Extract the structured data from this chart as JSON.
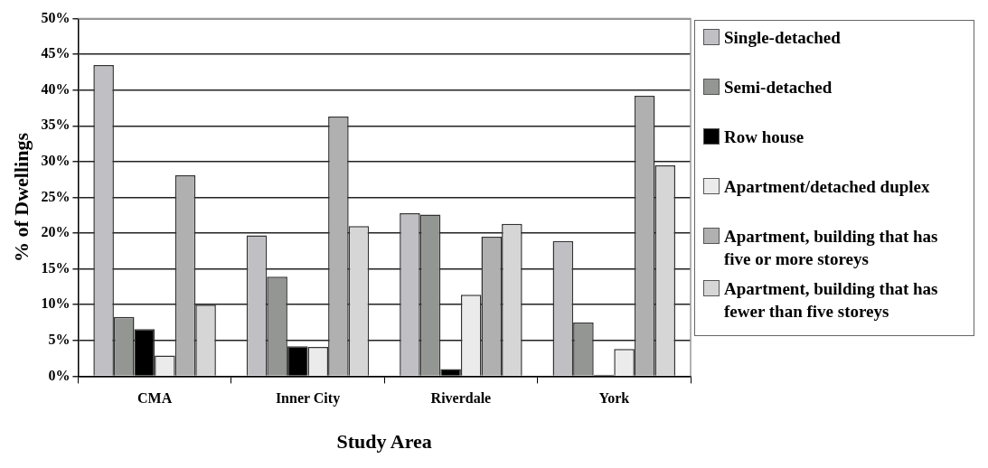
{
  "chart_data": {
    "type": "bar",
    "xlabel": "Study Area",
    "ylabel": "% of Dwellings",
    "categories": [
      "CMA",
      "Inner City",
      "Riverdale",
      "York"
    ],
    "series": [
      {
        "name": "Single-detached",
        "color": "#c0c0c4",
        "values": [
          43.5,
          19.7,
          22.8,
          18.9
        ]
      },
      {
        "name": "Semi-detached",
        "color": "#949694",
        "values": [
          8.3,
          13.9,
          22.6,
          7.5
        ]
      },
      {
        "name": "Row house",
        "color": "#000000",
        "values": [
          6.6,
          4.2,
          1.0,
          0.2
        ]
      },
      {
        "name": "Apartment/detached duplex",
        "color": "#ebebeb",
        "values": [
          2.9,
          4.1,
          11.4,
          3.8
        ]
      },
      {
        "name": "Apartment, building that has five or more storeys",
        "color": "#b0b0b0",
        "values": [
          28.1,
          36.3,
          19.5,
          39.2
        ]
      },
      {
        "name": "Apartment, building that has fewer than five storeys",
        "color": "#d6d6d6",
        "values": [
          10.0,
          21.0,
          21.3,
          29.5
        ]
      }
    ],
    "ylim": [
      0,
      50
    ],
    "yticks": [
      {
        "value": 0,
        "label": "0%"
      },
      {
        "value": 5,
        "label": "5%"
      },
      {
        "value": 10,
        "label": "10%"
      },
      {
        "value": 15,
        "label": "15%"
      },
      {
        "value": 20,
        "label": "20%"
      },
      {
        "value": 25,
        "label": "25%"
      },
      {
        "value": 30,
        "label": "30%"
      },
      {
        "value": 35,
        "label": "35%"
      },
      {
        "value": 40,
        "label": "40%"
      },
      {
        "value": 45,
        "label": "45%"
      },
      {
        "value": 50,
        "label": "50%"
      }
    ],
    "grid": "y",
    "legend": "right"
  }
}
